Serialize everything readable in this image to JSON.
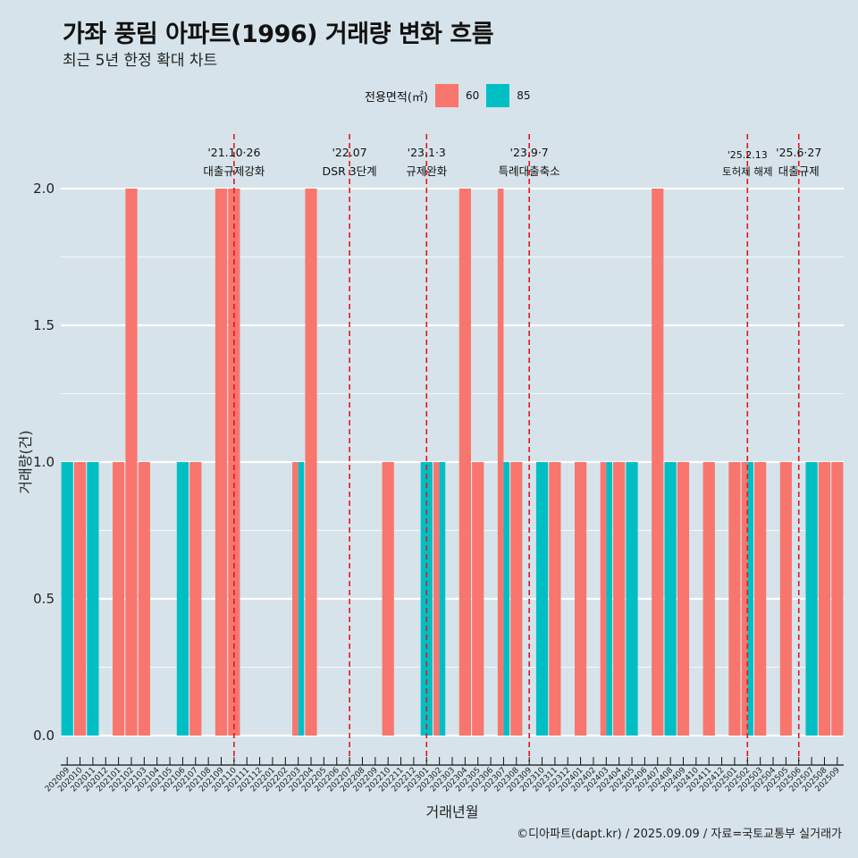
{
  "header": {
    "title": "가좌 풍림 아파트(1996) 거래량 변화 흐름",
    "subtitle": "최근 5년 한정 확대 차트"
  },
  "caption": "©디아파트(dapt.kr) / 2025.09.09 / 자료=국토교통부 실거래가",
  "legend": {
    "title": "전용면적(㎡)",
    "items": [
      {
        "label": "60",
        "color": "#f8766d"
      },
      {
        "label": "85",
        "color": "#00bfc4"
      }
    ]
  },
  "chart_data": {
    "type": "bar",
    "xlabel": "거래년월",
    "ylabel": "거래량(건)",
    "ylim": [
      0,
      2
    ],
    "yticks": [
      "0.0",
      "0.5",
      "1.0",
      "1.5",
      "2.0"
    ],
    "grid": true,
    "legend_position": "top",
    "categories": [
      "202009",
      "202010",
      "202011",
      "202012",
      "202101",
      "202102",
      "202103",
      "202104",
      "202105",
      "202106",
      "202107",
      "202108",
      "202109",
      "202110",
      "202111",
      "202112",
      "202201",
      "202202",
      "202203",
      "202204",
      "202205",
      "202206",
      "202207",
      "202208",
      "202209",
      "202210",
      "202211",
      "202212",
      "202301",
      "202302",
      "202303",
      "202304",
      "202305",
      "202306",
      "202307",
      "202308",
      "202309",
      "202310",
      "202311",
      "202312",
      "202401",
      "202402",
      "202403",
      "202404",
      "202405",
      "202406",
      "202407",
      "202408",
      "202409",
      "202410",
      "202411",
      "202412",
      "202501",
      "202502",
      "202503",
      "202504",
      "202505",
      "202506",
      "202507",
      "202508",
      "202509"
    ],
    "series": [
      {
        "name": "60",
        "color": "#f8766d",
        "values": [
          0,
          1,
          0,
          0,
          1,
          2,
          1,
          0,
          0,
          0,
          1,
          0,
          2,
          2,
          0,
          0,
          0,
          0,
          1,
          2,
          0,
          0,
          0,
          0,
          0,
          1,
          0,
          0,
          0,
          1,
          0,
          2,
          1,
          0,
          2,
          1,
          0,
          0,
          1,
          0,
          1,
          0,
          1,
          1,
          0,
          0,
          2,
          0,
          1,
          0,
          1,
          0,
          1,
          1,
          1,
          0,
          1,
          0,
          0,
          1,
          1
        ]
      },
      {
        "name": "85",
        "color": "#00bfc4",
        "values": [
          1,
          0,
          1,
          0,
          0,
          0,
          0,
          0,
          0,
          1,
          0,
          0,
          0,
          0,
          0,
          0,
          0,
          0,
          1,
          0,
          0,
          0,
          0,
          0,
          0,
          0,
          0,
          0,
          1,
          1,
          0,
          0,
          0,
          0,
          1,
          0,
          0,
          1,
          0,
          0,
          0,
          0,
          1,
          0,
          1,
          0,
          0,
          1,
          0,
          0,
          0,
          0,
          0,
          1,
          0,
          0,
          0,
          0,
          1,
          0,
          0
        ]
      }
    ],
    "annotations": [
      {
        "date": "'21.10·26",
        "label": "대출규제강화",
        "at": "202110"
      },
      {
        "date": "'22.07",
        "label": "DSR 3단계",
        "at": "202207"
      },
      {
        "date": "'23.1·3",
        "label": "규제완화",
        "at": "202301"
      },
      {
        "date": "'23.9·7",
        "label": "특례대출축소",
        "at": "202309"
      },
      {
        "date": "'25.2.13",
        "label": "토허제 해제",
        "at": "202502"
      },
      {
        "date": "'25.6·27",
        "label": "대출규제",
        "at": "202506"
      }
    ]
  }
}
